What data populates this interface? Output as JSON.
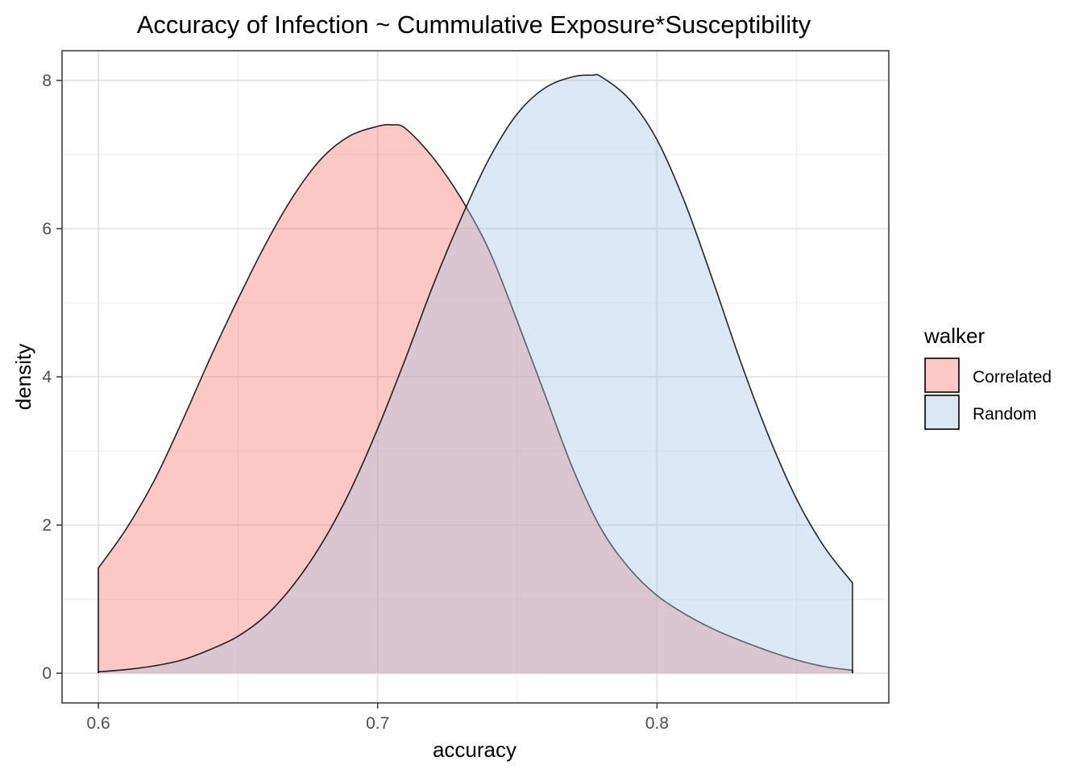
{
  "chart_data": {
    "type": "area",
    "title": "Accuracy of Infection ~ Cummulative Exposure*Susceptibility",
    "xlabel": "accuracy",
    "ylabel": "density",
    "xlim": [
      0.587,
      0.883
    ],
    "ylim": [
      -0.4,
      8.4
    ],
    "x_ticks": [
      0.6,
      0.7,
      0.8
    ],
    "x_tick_labels": [
      "0.6",
      "0.7",
      "0.8"
    ],
    "y_ticks": [
      0,
      2,
      4,
      6,
      8
    ],
    "y_tick_labels": [
      "0",
      "2",
      "4",
      "6",
      "8"
    ],
    "grid": true,
    "legend": {
      "title": "walker",
      "position": "right"
    },
    "series": [
      {
        "name": "Correlated",
        "color": "#F8766D",
        "x": [
          0.6,
          0.61,
          0.62,
          0.63,
          0.64,
          0.65,
          0.66,
          0.67,
          0.68,
          0.69,
          0.7,
          0.705,
          0.71,
          0.72,
          0.73,
          0.74,
          0.75,
          0.76,
          0.77,
          0.78,
          0.79,
          0.8,
          0.81,
          0.82,
          0.83,
          0.84,
          0.85,
          0.86,
          0.87
        ],
        "y": [
          1.42,
          1.95,
          2.6,
          3.4,
          4.25,
          5.05,
          5.8,
          6.45,
          6.95,
          7.25,
          7.38,
          7.4,
          7.35,
          6.95,
          6.4,
          5.7,
          4.75,
          3.75,
          2.75,
          1.95,
          1.42,
          1.05,
          0.8,
          0.6,
          0.44,
          0.3,
          0.18,
          0.09,
          0.04
        ]
      },
      {
        "name": "Random",
        "color": "#A5C4E1",
        "x": [
          0.6,
          0.61,
          0.62,
          0.63,
          0.64,
          0.65,
          0.66,
          0.67,
          0.68,
          0.69,
          0.7,
          0.71,
          0.72,
          0.73,
          0.74,
          0.75,
          0.76,
          0.77,
          0.777,
          0.78,
          0.79,
          0.8,
          0.81,
          0.82,
          0.83,
          0.84,
          0.85,
          0.86,
          0.87
        ],
        "y": [
          0.02,
          0.05,
          0.1,
          0.18,
          0.32,
          0.5,
          0.78,
          1.2,
          1.75,
          2.45,
          3.3,
          4.25,
          5.25,
          6.15,
          6.95,
          7.55,
          7.9,
          8.05,
          8.07,
          8.05,
          7.75,
          7.2,
          6.35,
          5.3,
          4.2,
          3.2,
          2.35,
          1.7,
          1.22
        ]
      }
    ]
  }
}
